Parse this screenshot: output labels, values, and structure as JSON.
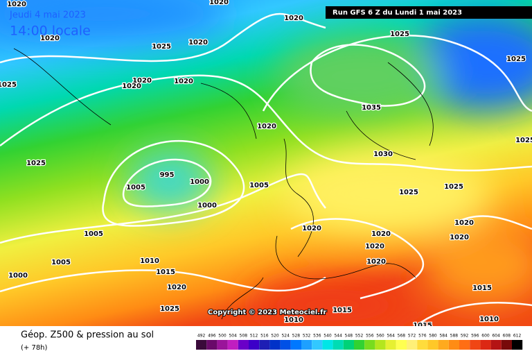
{
  "header": {
    "date": "Jeudi 4 mai 2023",
    "time": "14:00 locale",
    "run": "Run GFS 6 Z du Lundi 1 mai 2023"
  },
  "copyright": "Copyright © 2023 Meteociel.fr",
  "footer": {
    "title": "Géop. Z500 & pression au sol",
    "lead": "(+ 78h)"
  },
  "isobar_labels": [
    "1020",
    "1020",
    "1020",
    "1020",
    "1025",
    "1020",
    "1025",
    "1025",
    "1025",
    "1020",
    "1020",
    "1020",
    "1035",
    "1020",
    "1025",
    "1030",
    "995",
    "1005",
    "1000",
    "1005",
    "1000",
    "1025",
    "1025",
    "1025",
    "1020",
    "1020",
    "1020",
    "1020",
    "1005",
    "1020",
    "1020",
    "1005",
    "1010",
    "1015",
    "1000",
    "1020",
    "1015",
    "1025",
    "1015",
    "1010",
    "1010",
    "1015"
  ],
  "legend": {
    "labels": [
      "492",
      "496",
      "500",
      "504",
      "508",
      "512",
      "516",
      "520",
      "524",
      "528",
      "532",
      "536",
      "540",
      "544",
      "548",
      "552",
      "556",
      "560",
      "564",
      "568",
      "572",
      "576",
      "580",
      "584",
      "588",
      "592",
      "596",
      "600",
      "604",
      "608",
      "612"
    ],
    "colors": [
      "#3a0a3a",
      "#6a0a6a",
      "#9a149a",
      "#c01ec0",
      "#6a00c8",
      "#3c00c8",
      "#1e1eb4",
      "#0032c8",
      "#0050e6",
      "#0078ff",
      "#1ea0ff",
      "#32c8ff",
      "#00e6e6",
      "#00dcb4",
      "#00d278",
      "#32d232",
      "#78dc1e",
      "#b4e61e",
      "#e6f032",
      "#ffff50",
      "#fff078",
      "#ffdc3c",
      "#ffc828",
      "#ffaa1e",
      "#ff8c14",
      "#ff6e14",
      "#f04614",
      "#dc2814",
      "#b41414",
      "#780a0a",
      "#000000"
    ]
  }
}
